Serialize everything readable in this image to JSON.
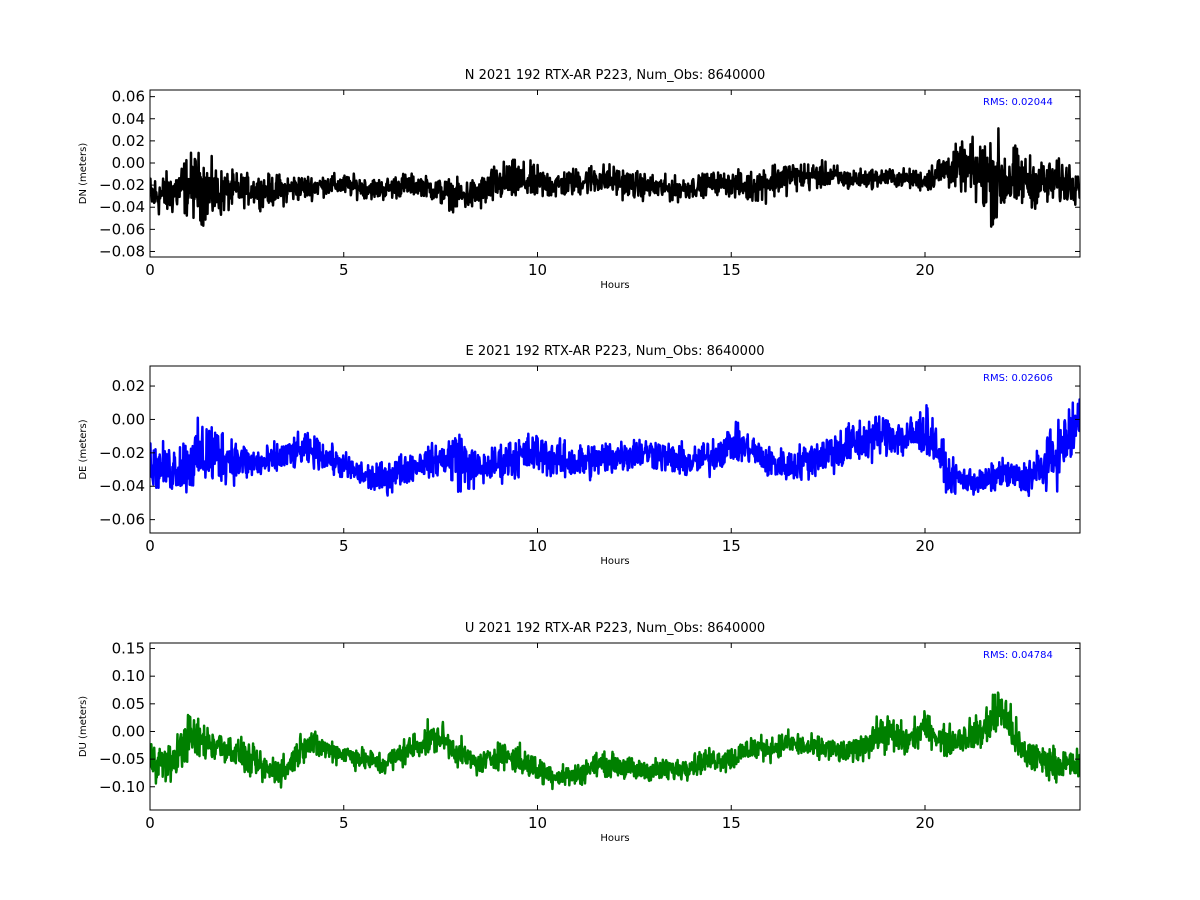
{
  "chart_data": [
    {
      "type": "line",
      "title": "N 2021 192 RTX-AR  P223, Num_Obs: 8640000",
      "xlabel": "Hours",
      "ylabel": "DN (meters)",
      "xlim": [
        0,
        24
      ],
      "ylim": [
        -0.085,
        0.066
      ],
      "xticks": [
        0,
        5,
        10,
        15,
        20
      ],
      "xtick_labels": [
        "0",
        "5",
        "10",
        "15",
        "20"
      ],
      "yticks": [
        0.06,
        0.04,
        0.02,
        0.0,
        -0.02,
        -0.04,
        -0.06,
        -0.08
      ],
      "ytick_labels": [
        "0.06",
        "0.04",
        "0.02",
        "0.00",
        "−0.02",
        "−0.04",
        "−0.06",
        "−0.08"
      ],
      "rms_label": "RMS:  0.02044",
      "rms_color": "#0000ff",
      "color": "#000000",
      "grid": false,
      "series": [
        {
          "x": [
            0,
            0.5,
            1.0,
            1.3,
            1.6,
            2.0,
            2.5,
            3.0,
            3.5,
            4.0,
            4.5,
            5.0,
            5.5,
            6.0,
            6.5,
            7.0,
            7.5,
            8.0,
            8.5,
            9.0,
            9.5,
            10.0,
            10.5,
            11.0,
            11.5,
            12.0,
            12.5,
            13.0,
            13.5,
            14.0,
            14.5,
            15.0,
            15.5,
            16.0,
            16.5,
            17.0,
            17.5,
            18.0,
            18.5,
            19.0,
            19.5,
            20.0,
            20.5,
            21.0,
            21.5,
            21.8,
            22.0,
            22.5,
            23.0,
            23.5,
            24.0
          ],
          "y": [
            -0.03,
            -0.028,
            -0.02,
            -0.022,
            -0.028,
            -0.026,
            -0.024,
            -0.025,
            -0.024,
            -0.022,
            -0.02,
            -0.02,
            -0.022,
            -0.024,
            -0.02,
            -0.02,
            -0.026,
            -0.03,
            -0.028,
            -0.018,
            -0.016,
            -0.018,
            -0.02,
            -0.017,
            -0.014,
            -0.016,
            -0.02,
            -0.022,
            -0.024,
            -0.022,
            -0.018,
            -0.019,
            -0.022,
            -0.016,
            -0.012,
            -0.012,
            -0.011,
            -0.015,
            -0.014,
            -0.013,
            -0.014,
            -0.016,
            -0.006,
            -0.004,
            -0.012,
            -0.014,
            -0.014,
            -0.016,
            -0.018,
            -0.018,
            -0.016
          ],
          "band": [
            0.028,
            0.028,
            0.04,
            0.045,
            0.038,
            0.026,
            0.02,
            0.02,
            0.02,
            0.016,
            0.014,
            0.014,
            0.014,
            0.014,
            0.016,
            0.012,
            0.018,
            0.02,
            0.022,
            0.026,
            0.026,
            0.022,
            0.018,
            0.018,
            0.02,
            0.02,
            0.018,
            0.016,
            0.016,
            0.014,
            0.014,
            0.016,
            0.02,
            0.024,
            0.02,
            0.018,
            0.016,
            0.014,
            0.012,
            0.012,
            0.012,
            0.014,
            0.024,
            0.03,
            0.05,
            0.06,
            0.055,
            0.035,
            0.03,
            0.028,
            0.026
          ]
        }
      ]
    },
    {
      "type": "line",
      "title": "E 2021 192 RTX-AR  P223, Num_Obs: 8640000",
      "xlabel": "Hours",
      "ylabel": "DE (meters)",
      "xlim": [
        0,
        24
      ],
      "ylim": [
        -0.068,
        0.032
      ],
      "xticks": [
        0,
        5,
        10,
        15,
        20
      ],
      "xtick_labels": [
        "0",
        "5",
        "10",
        "15",
        "20"
      ],
      "yticks": [
        0.02,
        0.0,
        -0.02,
        -0.04,
        -0.06
      ],
      "ytick_labels": [
        "0.02",
        "0.00",
        "−0.02",
        "−0.04",
        "−0.06"
      ],
      "rms_label": "RMS:  0.02606",
      "rms_color": "#0000ff",
      "color": "#0000ff",
      "grid": false,
      "series": [
        {
          "x": [
            0,
            0.5,
            1.0,
            1.5,
            2.0,
            2.5,
            3.0,
            3.5,
            4.0,
            4.5,
            5.0,
            5.5,
            6.0,
            6.5,
            7.0,
            7.5,
            7.9,
            8.2,
            8.5,
            9.0,
            9.5,
            10.0,
            10.5,
            11.0,
            11.5,
            12.0,
            12.5,
            13.0,
            13.5,
            14.0,
            14.5,
            15.0,
            15.5,
            16.0,
            16.5,
            17.0,
            17.5,
            18.0,
            18.5,
            19.0,
            19.5,
            20.0,
            20.3,
            20.6,
            21.0,
            21.5,
            22.0,
            22.5,
            23.0,
            23.5,
            24.0
          ],
          "y": [
            -0.028,
            -0.03,
            -0.026,
            -0.02,
            -0.022,
            -0.026,
            -0.026,
            -0.022,
            -0.018,
            -0.022,
            -0.028,
            -0.034,
            -0.036,
            -0.03,
            -0.026,
            -0.024,
            -0.022,
            -0.028,
            -0.03,
            -0.026,
            -0.022,
            -0.02,
            -0.024,
            -0.026,
            -0.024,
            -0.022,
            -0.02,
            -0.02,
            -0.024,
            -0.026,
            -0.022,
            -0.014,
            -0.018,
            -0.026,
            -0.028,
            -0.024,
            -0.02,
            -0.016,
            -0.012,
            -0.008,
            -0.012,
            -0.006,
            -0.016,
            -0.034,
            -0.036,
            -0.038,
            -0.032,
            -0.036,
            -0.03,
            -0.018,
            0.0
          ],
          "band": [
            0.018,
            0.02,
            0.026,
            0.032,
            0.022,
            0.016,
            0.014,
            0.014,
            0.014,
            0.012,
            0.012,
            0.012,
            0.014,
            0.014,
            0.012,
            0.014,
            0.028,
            0.022,
            0.014,
            0.016,
            0.018,
            0.018,
            0.016,
            0.016,
            0.016,
            0.016,
            0.014,
            0.014,
            0.014,
            0.014,
            0.016,
            0.016,
            0.014,
            0.014,
            0.014,
            0.016,
            0.018,
            0.02,
            0.02,
            0.018,
            0.018,
            0.022,
            0.02,
            0.014,
            0.012,
            0.012,
            0.012,
            0.014,
            0.02,
            0.026,
            0.032
          ]
        }
      ]
    },
    {
      "type": "line",
      "title": "U 2021 192 RTX-AR  P223, Num_Obs: 8640000",
      "xlabel": "Hours",
      "ylabel": "DU (meters)",
      "xlim": [
        0,
        24
      ],
      "ylim": [
        -0.142,
        0.16
      ],
      "xticks": [
        0,
        5,
        10,
        15,
        20
      ],
      "xtick_labels": [
        "0",
        "5",
        "10",
        "15",
        "20"
      ],
      "yticks": [
        0.15,
        0.1,
        0.05,
        0.0,
        -0.05,
        -0.1
      ],
      "ytick_labels": [
        "0.15",
        "0.10",
        "0.05",
        "0.00",
        "−0.05",
        "−0.10"
      ],
      "rms_label": "RMS:  0.04784",
      "rms_color": "#0000ff",
      "color": "#008000",
      "grid": false,
      "series": [
        {
          "x": [
            0,
            0.5,
            1.0,
            1.5,
            2.0,
            2.5,
            3.0,
            3.5,
            4.0,
            4.5,
            5.0,
            5.5,
            6.0,
            6.5,
            7.0,
            7.5,
            8.0,
            8.5,
            9.0,
            9.5,
            10.0,
            10.5,
            11.0,
            11.5,
            12.0,
            12.5,
            13.0,
            13.5,
            14.0,
            14.5,
            15.0,
            15.5,
            16.0,
            16.5,
            17.0,
            17.5,
            18.0,
            18.5,
            19.0,
            19.5,
            20.0,
            20.5,
            21.0,
            21.5,
            21.8,
            22.0,
            22.5,
            23.0,
            23.5,
            24.0
          ],
          "y": [
            -0.05,
            -0.06,
            -0.01,
            -0.02,
            -0.03,
            -0.05,
            -0.07,
            -0.07,
            -0.02,
            -0.03,
            -0.04,
            -0.05,
            -0.06,
            -0.04,
            -0.02,
            -0.01,
            -0.04,
            -0.06,
            -0.04,
            -0.05,
            -0.07,
            -0.08,
            -0.08,
            -0.06,
            -0.06,
            -0.07,
            -0.07,
            -0.07,
            -0.06,
            -0.05,
            -0.05,
            -0.03,
            -0.03,
            -0.02,
            -0.03,
            -0.03,
            -0.04,
            -0.02,
            0.0,
            -0.02,
            0.01,
            -0.02,
            -0.01,
            0.0,
            0.03,
            0.04,
            -0.04,
            -0.05,
            -0.06,
            -0.06
          ],
          "band": [
            0.05,
            0.05,
            0.06,
            0.05,
            0.04,
            0.04,
            0.04,
            0.04,
            0.04,
            0.03,
            0.03,
            0.03,
            0.03,
            0.035,
            0.04,
            0.04,
            0.035,
            0.03,
            0.035,
            0.04,
            0.035,
            0.03,
            0.03,
            0.03,
            0.03,
            0.03,
            0.03,
            0.03,
            0.03,
            0.03,
            0.035,
            0.035,
            0.03,
            0.03,
            0.03,
            0.03,
            0.03,
            0.04,
            0.05,
            0.045,
            0.035,
            0.04,
            0.04,
            0.05,
            0.07,
            0.06,
            0.05,
            0.04,
            0.04,
            0.04
          ]
        }
      ]
    }
  ]
}
